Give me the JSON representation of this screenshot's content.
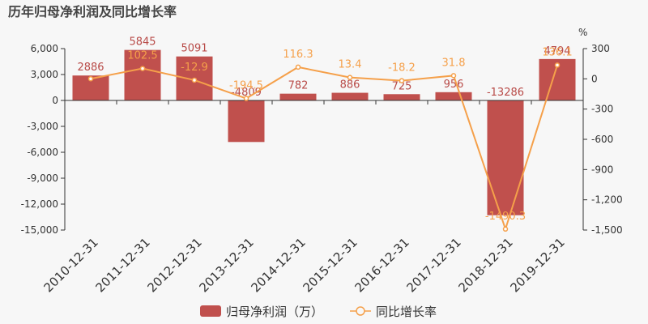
{
  "title": "历年归母净利润及同比增长率",
  "right_axis_unit": "%",
  "colors": {
    "bar": "#c0504d",
    "bar_label": "#b84a47",
    "line": "#f5a04a",
    "line_label": "#f5a04a",
    "axis": "#333333",
    "background": "#f7f7f7"
  },
  "legend": {
    "bar_label": "归母净利润（万）",
    "line_label": "同比增长率",
    "position": "bottom-center"
  },
  "chart_data": {
    "type": "bar",
    "combo": "bar+line",
    "categories": [
      "2010-12-31",
      "2011-12-31",
      "2012-12-31",
      "2013-12-31",
      "2014-12-31",
      "2015-12-31",
      "2016-12-31",
      "2017-12-31",
      "2018-12-31",
      "2019-12-31"
    ],
    "series": [
      {
        "name": "归母净利润（万）",
        "type": "bar",
        "axis": "left",
        "values": [
          2886,
          5845,
          5091,
          -4809,
          782,
          886,
          725,
          956,
          -13286,
          4794
        ],
        "labels": [
          "2886",
          "5845",
          "5091",
          "-4809",
          "782",
          "886",
          "725",
          "956",
          "-13286",
          "4794"
        ]
      },
      {
        "name": "同比增长率",
        "type": "line",
        "axis": "right",
        "values": [
          0.8,
          102.5,
          -12.9,
          -194.5,
          116.3,
          13.4,
          -18.2,
          31.8,
          -1490.3,
          136.1
        ],
        "labels": [
          "",
          "102.5",
          "-12.9",
          "-194.5",
          "116.3",
          "13.4",
          "-18.2",
          "31.8",
          "-1490.3",
          "136.1"
        ]
      }
    ],
    "left_axis": {
      "min": -15000,
      "max": 6000,
      "ticks": [
        6000,
        3000,
        0,
        -3000,
        -6000,
        -9000,
        -12000,
        -15000
      ],
      "tick_labels": [
        "6,000",
        "3,000",
        "0",
        "-3,000",
        "-6,000",
        "-9,000",
        "-12,000",
        "-15,000"
      ]
    },
    "right_axis": {
      "min": -1500,
      "max": 300,
      "ticks": [
        300,
        0,
        -300,
        -600,
        -900,
        -1200,
        -1500
      ],
      "tick_labels": [
        "300",
        "0",
        "-300",
        "-600",
        "-900",
        "-1,200",
        "-1,500"
      ]
    },
    "grid": false
  }
}
